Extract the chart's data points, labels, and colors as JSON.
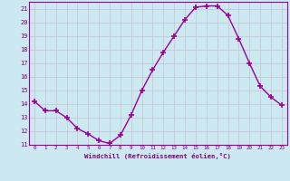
{
  "x": [
    0,
    1,
    2,
    3,
    4,
    5,
    6,
    7,
    8,
    9,
    10,
    11,
    12,
    13,
    14,
    15,
    16,
    17,
    18,
    19,
    20,
    21,
    22,
    23
  ],
  "y": [
    14.2,
    13.5,
    13.5,
    13.0,
    12.2,
    11.8,
    11.3,
    11.1,
    11.7,
    13.2,
    15.0,
    16.5,
    17.8,
    19.0,
    20.2,
    21.1,
    21.2,
    21.2,
    20.5,
    18.8,
    17.0,
    15.3,
    14.5,
    13.9
  ],
  "line_color": "#990099",
  "marker": "+",
  "marker_size": 4,
  "bg_color": "#cce8f0",
  "grid_color": "#c8c8d8",
  "xlabel": "Windchill (Refroidissement éolien,°C)",
  "tick_color": "#800080",
  "ylim": [
    11,
    21.5
  ],
  "xlim": [
    -0.5,
    23.5
  ],
  "yticks": [
    11,
    12,
    13,
    14,
    15,
    16,
    17,
    18,
    19,
    20,
    21
  ],
  "xticks": [
    0,
    1,
    2,
    3,
    4,
    5,
    6,
    7,
    8,
    9,
    10,
    11,
    12,
    13,
    14,
    15,
    16,
    17,
    18,
    19,
    20,
    21,
    22,
    23
  ]
}
